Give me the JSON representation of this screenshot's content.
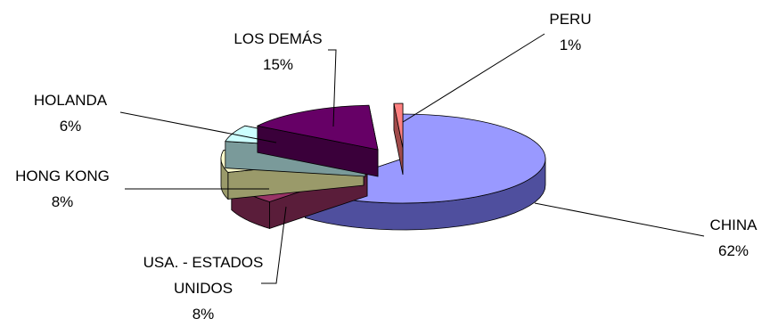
{
  "chart_data": {
    "type": "pie",
    "style": "3d-exploded",
    "title": "",
    "legend": "none",
    "slices": [
      {
        "label": "CHINA",
        "value": 62,
        "pct_label": "62%",
        "color": "#9999ff",
        "side_color": "#4f4f9e"
      },
      {
        "label": "USA. - ESTADOS UNIDOS",
        "label_lines": [
          "USA. - ESTADOS",
          "UNIDOS"
        ],
        "value": 8,
        "pct_label": "8%",
        "color": "#993366",
        "side_color": "#5a1d3a"
      },
      {
        "label": "HONG KONG",
        "value": 8,
        "pct_label": "8%",
        "color": "#ffffcc",
        "side_color": "#9a9a6a"
      },
      {
        "label": "HOLANDA",
        "value": 6,
        "pct_label": "6%",
        "color": "#ccffff",
        "side_color": "#7a9a9a"
      },
      {
        "label": "LOS DEMÁS",
        "value": 15,
        "pct_label": "15%",
        "color": "#660066",
        "side_color": "#3a003a"
      },
      {
        "label": "PERU",
        "value": 1,
        "pct_label": "1%",
        "color": "#ff8080",
        "side_color": "#a04a4a"
      }
    ]
  }
}
